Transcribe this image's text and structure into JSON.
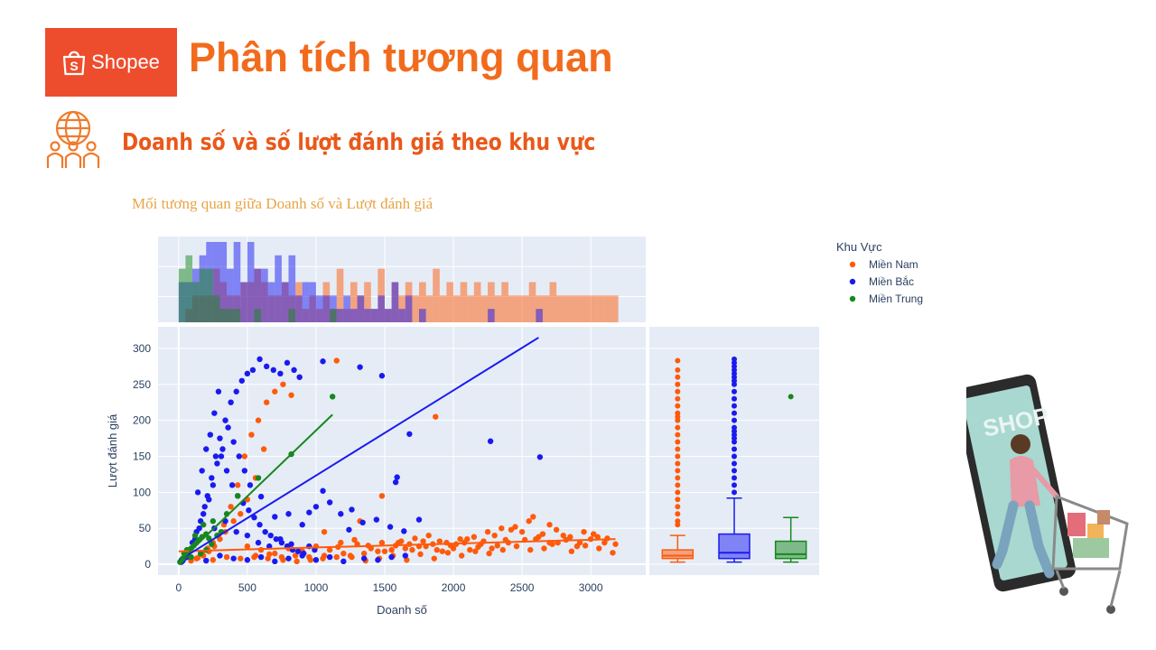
{
  "header": {
    "logo_text": "Shopee",
    "title": "Phân tích tương quan",
    "subtitle": "Doanh số và số lượt đánh giá theo khu vực"
  },
  "colors": {
    "brand": "#ee4d2d",
    "title": "#f26b1d",
    "mien_nam": "#ff5a0a",
    "mien_bac": "#1a1af0",
    "mien_trung": "#17881c",
    "plot_bg": "#e5ecf6"
  },
  "icons": {
    "logo": "shopee-bag-icon",
    "section": "globe-people-icon",
    "illustration": "shop-phone-cart-illustration"
  },
  "chart_data": {
    "type": "scatter",
    "title": "Mối tương quan giữa Doanh số và Lượt đánh giá",
    "xlabel": "Doanh số",
    "ylabel": "Lượt đánh giá",
    "xlim": [
      -150,
      3400
    ],
    "ylim": [
      -15,
      330
    ],
    "xticks": [
      0,
      500,
      1000,
      1500,
      2000,
      2500,
      3000
    ],
    "yticks": [
      0,
      50,
      100,
      150,
      200,
      250,
      300
    ],
    "grid": true,
    "legend_title": "Khu Vực",
    "legend_position": "top-right",
    "marginal_x": "histogram",
    "marginal_y": "box",
    "series": [
      {
        "name": "Miền Nam",
        "color": "#ff5a0a",
        "trendline": [
          [
            0,
            18
          ],
          [
            3180,
            35
          ]
        ],
        "points": [
          [
            90,
            5
          ],
          [
            130,
            8
          ],
          [
            170,
            15
          ],
          [
            210,
            22
          ],
          [
            250,
            30
          ],
          [
            290,
            40
          ],
          [
            330,
            55
          ],
          [
            380,
            80
          ],
          [
            430,
            110
          ],
          [
            480,
            150
          ],
          [
            530,
            180
          ],
          [
            580,
            200
          ],
          [
            640,
            225
          ],
          [
            700,
            240
          ],
          [
            760,
            250
          ],
          [
            820,
            235
          ],
          [
            880,
            260
          ],
          [
            620,
            160
          ],
          [
            560,
            120
          ],
          [
            500,
            90
          ],
          [
            450,
            70
          ],
          [
            400,
            60
          ],
          [
            340,
            45
          ],
          [
            300,
            35
          ],
          [
            260,
            25
          ],
          [
            220,
            18
          ],
          [
            180,
            12
          ],
          [
            140,
            9
          ],
          [
            1150,
            283
          ],
          [
            1870,
            205
          ],
          [
            1480,
            95
          ],
          [
            1060,
            45
          ],
          [
            1320,
            60
          ],
          [
            500,
            25
          ],
          [
            600,
            20
          ],
          [
            700,
            15
          ],
          [
            800,
            22
          ],
          [
            900,
            18
          ],
          [
            1000,
            25
          ],
          [
            1100,
            20
          ],
          [
            1200,
            15
          ],
          [
            1300,
            28
          ],
          [
            1400,
            22
          ],
          [
            1500,
            18
          ],
          [
            1600,
            30
          ],
          [
            1700,
            20
          ],
          [
            1800,
            25
          ],
          [
            1900,
            32
          ],
          [
            2000,
            22
          ],
          [
            2100,
            35
          ],
          [
            2200,
            28
          ],
          [
            2300,
            40
          ],
          [
            2400,
            30
          ],
          [
            2500,
            45
          ],
          [
            2600,
            35
          ],
          [
            2700,
            30
          ],
          [
            2800,
            40
          ],
          [
            2900,
            25
          ],
          [
            3000,
            35
          ],
          [
            3100,
            30
          ],
          [
            3180,
            28
          ],
          [
            2450,
            52
          ],
          [
            2550,
            60
          ],
          [
            2650,
            42
          ],
          [
            2750,
            48
          ],
          [
            2850,
            38
          ],
          [
            2950,
            45
          ],
          [
            3050,
            38
          ],
          [
            2350,
            50
          ],
          [
            2250,
            45
          ],
          [
            2150,
            38
          ],
          [
            2050,
            35
          ],
          [
            1950,
            30
          ],
          [
            1850,
            28
          ],
          [
            1750,
            25
          ],
          [
            1650,
            22
          ],
          [
            1550,
            20
          ],
          [
            1450,
            18
          ],
          [
            1350,
            15
          ],
          [
            1250,
            12
          ],
          [
            1150,
            10
          ],
          [
            1050,
            8
          ],
          [
            950,
            10
          ],
          [
            850,
            12
          ],
          [
            750,
            10
          ],
          [
            650,
            8
          ],
          [
            550,
            10
          ],
          [
            450,
            8
          ],
          [
            350,
            10
          ],
          [
            250,
            6
          ],
          [
            560,
            12
          ],
          [
            660,
            14
          ],
          [
            760,
            6
          ],
          [
            860,
            4
          ],
          [
            960,
            6
          ],
          [
            1060,
            12
          ],
          [
            1160,
            24
          ],
          [
            1260,
            10
          ],
          [
            1360,
            5
          ],
          [
            1460,
            8
          ],
          [
            1560,
            12
          ],
          [
            1660,
            6
          ],
          [
            1760,
            14
          ],
          [
            1860,
            8
          ],
          [
            1960,
            16
          ],
          [
            2060,
            12
          ],
          [
            2160,
            18
          ],
          [
            2260,
            15
          ],
          [
            2360,
            20
          ],
          [
            2460,
            25
          ],
          [
            2560,
            20
          ],
          [
            2660,
            22
          ],
          [
            2760,
            30
          ],
          [
            2860,
            18
          ],
          [
            2960,
            26
          ],
          [
            3060,
            22
          ],
          [
            3160,
            16
          ],
          [
            2580,
            66
          ],
          [
            2420,
            48
          ],
          [
            2700,
            55
          ],
          [
            1620,
            32
          ],
          [
            1720,
            36
          ],
          [
            1820,
            40
          ],
          [
            1920,
            18
          ],
          [
            2020,
            28
          ],
          [
            2120,
            20
          ],
          [
            2220,
            32
          ],
          [
            2320,
            26
          ],
          [
            2520,
            34
          ],
          [
            2620,
            38
          ],
          [
            2720,
            28
          ],
          [
            2820,
            34
          ],
          [
            2920,
            30
          ],
          [
            3020,
            42
          ],
          [
            3120,
            36
          ],
          [
            1180,
            30
          ],
          [
            1280,
            34
          ],
          [
            1380,
            26
          ],
          [
            1480,
            30
          ],
          [
            1580,
            26
          ],
          [
            1680,
            28
          ],
          [
            1780,
            32
          ],
          [
            1880,
            20
          ],
          [
            1980,
            26
          ],
          [
            2080,
            30
          ],
          [
            2180,
            24
          ],
          [
            2280,
            22
          ],
          [
            2380,
            34
          ]
        ]
      },
      {
        "name": "Miền Bắc",
        "color": "#1a1af0",
        "trendline": [
          [
            0,
            5
          ],
          [
            2620,
            315
          ]
        ],
        "points": [
          [
            30,
            5
          ],
          [
            60,
            10
          ],
          [
            90,
            20
          ],
          [
            120,
            35
          ],
          [
            150,
            50
          ],
          [
            180,
            70
          ],
          [
            210,
            95
          ],
          [
            240,
            120
          ],
          [
            270,
            150
          ],
          [
            300,
            175
          ],
          [
            340,
            200
          ],
          [
            380,
            225
          ],
          [
            420,
            240
          ],
          [
            460,
            255
          ],
          [
            500,
            265
          ],
          [
            540,
            270
          ],
          [
            590,
            285
          ],
          [
            640,
            275
          ],
          [
            690,
            270
          ],
          [
            740,
            265
          ],
          [
            790,
            280
          ],
          [
            840,
            270
          ],
          [
            880,
            260
          ],
          [
            1050,
            282
          ],
          [
            1320,
            274
          ],
          [
            1480,
            262
          ],
          [
            1680,
            181
          ],
          [
            2270,
            171
          ],
          [
            2630,
            149
          ],
          [
            1580,
            114
          ],
          [
            1590,
            121
          ],
          [
            1260,
            76
          ],
          [
            1340,
            58
          ],
          [
            1440,
            62
          ],
          [
            1540,
            52
          ],
          [
            1640,
            46
          ],
          [
            1750,
            62
          ],
          [
            1100,
            86
          ],
          [
            1180,
            70
          ],
          [
            1240,
            48
          ],
          [
            1050,
            102
          ],
          [
            1000,
            80
          ],
          [
            950,
            72
          ],
          [
            900,
            55
          ],
          [
            800,
            70
          ],
          [
            700,
            66
          ],
          [
            600,
            94
          ],
          [
            520,
            110
          ],
          [
            480,
            130
          ],
          [
            440,
            150
          ],
          [
            400,
            170
          ],
          [
            360,
            190
          ],
          [
            320,
            160
          ],
          [
            280,
            140
          ],
          [
            250,
            110
          ],
          [
            220,
            90
          ],
          [
            190,
            80
          ],
          [
            160,
            60
          ],
          [
            130,
            45
          ],
          [
            100,
            30
          ],
          [
            70,
            18
          ],
          [
            40,
            8
          ],
          [
            20,
            3
          ],
          [
            200,
            5
          ],
          [
            300,
            12
          ],
          [
            400,
            8
          ],
          [
            500,
            6
          ],
          [
            600,
            10
          ],
          [
            700,
            4
          ],
          [
            800,
            8
          ],
          [
            900,
            12
          ],
          [
            1000,
            6
          ],
          [
            1100,
            10
          ],
          [
            1200,
            4
          ],
          [
            1350,
            8
          ],
          [
            1450,
            6
          ],
          [
            1550,
            10
          ],
          [
            1650,
            12
          ],
          [
            260,
            50
          ],
          [
            340,
            60
          ],
          [
            420,
            45
          ],
          [
            500,
            40
          ],
          [
            580,
            30
          ],
          [
            660,
            25
          ],
          [
            740,
            35
          ],
          [
            820,
            28
          ],
          [
            140,
            100
          ],
          [
            170,
            130
          ],
          [
            200,
            160
          ],
          [
            230,
            180
          ],
          [
            260,
            210
          ],
          [
            290,
            240
          ],
          [
            310,
            150
          ],
          [
            350,
            130
          ],
          [
            390,
            110
          ],
          [
            430,
            95
          ],
          [
            470,
            85
          ],
          [
            510,
            75
          ],
          [
            550,
            65
          ],
          [
            590,
            55
          ],
          [
            630,
            45
          ],
          [
            670,
            40
          ],
          [
            710,
            35
          ],
          [
            750,
            30
          ],
          [
            790,
            25
          ],
          [
            830,
            20
          ],
          [
            870,
            18
          ],
          [
            910,
            15
          ],
          [
            950,
            25
          ],
          [
            990,
            20
          ]
        ]
      },
      {
        "name": "Miền Trung",
        "color": "#17881c",
        "trendline": [
          [
            0,
            3
          ],
          [
            1120,
            208
          ]
        ],
        "points": [
          [
            10,
            3
          ],
          [
            30,
            8
          ],
          [
            50,
            12
          ],
          [
            70,
            18
          ],
          [
            90,
            22
          ],
          [
            110,
            26
          ],
          [
            130,
            30
          ],
          [
            150,
            34
          ],
          [
            170,
            38
          ],
          [
            200,
            42
          ],
          [
            220,
            36
          ],
          [
            240,
            28
          ],
          [
            280,
            40
          ],
          [
            310,
            45
          ],
          [
            250,
            60
          ],
          [
            180,
            55
          ],
          [
            120,
            40
          ],
          [
            60,
            20
          ],
          [
            40,
            15
          ],
          [
            20,
            6
          ],
          [
            1120,
            233
          ],
          [
            820,
            153
          ],
          [
            580,
            120
          ],
          [
            430,
            95
          ],
          [
            350,
            70
          ],
          [
            160,
            15
          ],
          [
            90,
            10
          ],
          [
            200,
            20
          ]
        ]
      }
    ],
    "box": [
      {
        "name": "Miền Nam",
        "min": 3,
        "q1": 8,
        "median": 12,
        "q3": 20,
        "max": 40,
        "outliers": [
          55,
          60,
          70,
          80,
          90,
          100,
          110,
          120,
          130,
          140,
          150,
          160,
          170,
          180,
          190,
          200,
          205,
          210,
          220,
          230,
          240,
          250,
          260,
          270,
          283
        ]
      },
      {
        "name": "Miền Bắc",
        "min": 3,
        "q1": 8,
        "median": 16,
        "q3": 42,
        "max": 92,
        "outliers": [
          100,
          110,
          120,
          130,
          140,
          150,
          160,
          170,
          175,
          180,
          185,
          190,
          200,
          210,
          220,
          230,
          240,
          250,
          255,
          260,
          265,
          270,
          275,
          280,
          285
        ]
      },
      {
        "name": "Miền Trung",
        "min": 3,
        "q1": 8,
        "median": 14,
        "q3": 32,
        "max": 65,
        "outliers": [
          233
        ]
      }
    ]
  }
}
